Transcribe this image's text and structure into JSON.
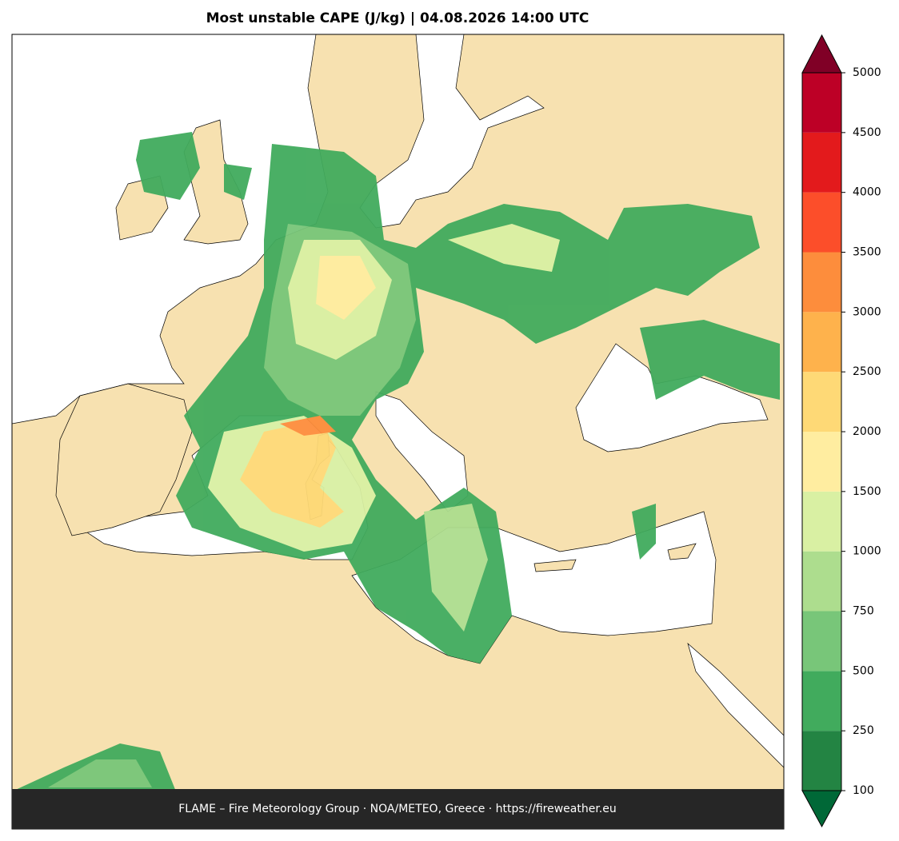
{
  "title": "Most unstable CAPE (J/kg)  |  04.08.2026 14:00 UTC",
  "footer": "FLAME – Fire Meteorology Group · NOA/METEO, Greece · https://fireweather.eu",
  "colorbar": {
    "levels": [
      100,
      250,
      500,
      750,
      1000,
      1500,
      2000,
      2500,
      3000,
      3500,
      4000,
      4500,
      5000
    ],
    "colors": [
      "#238443",
      "#41ab5d",
      "#78c679",
      "#addd8e",
      "#d9f0a3",
      "#ffeda0",
      "#fed976",
      "#feb24c",
      "#fd8d3c",
      "#fc4e2a",
      "#e31a1c",
      "#bd0026"
    ],
    "under_color": "#006837",
    "over_color": "#800026"
  }
}
